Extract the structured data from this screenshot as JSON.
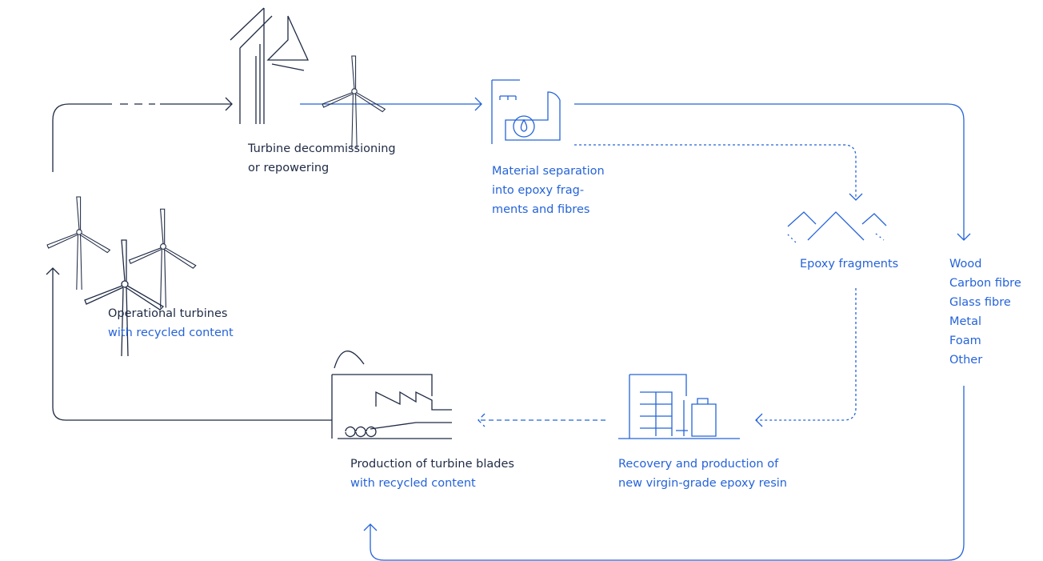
{
  "nodes": [
    {
      "lines": [
        "Turbine decommissioning",
        "or repowering"
      ]
    },
    {
      "lines": [
        "Material separation",
        "into epoxy frag-",
        "ments and fibres"
      ]
    },
    {
      "lines": [
        "Epoxy fragments"
      ]
    },
    {
      "lines": [
        "Wood",
        "Carbon fibre",
        "Glass fibre",
        "Metal",
        "Foam",
        "Other"
      ]
    },
    {
      "lines": [
        "Recovery and production of",
        "new virgin-grade epoxy resin"
      ]
    },
    {
      "lines": [
        "Production of turbine blades",
        "with recycled content"
      ]
    },
    {
      "lines": [
        "Operational turbines",
        "with recycled content"
      ]
    }
  ]
}
